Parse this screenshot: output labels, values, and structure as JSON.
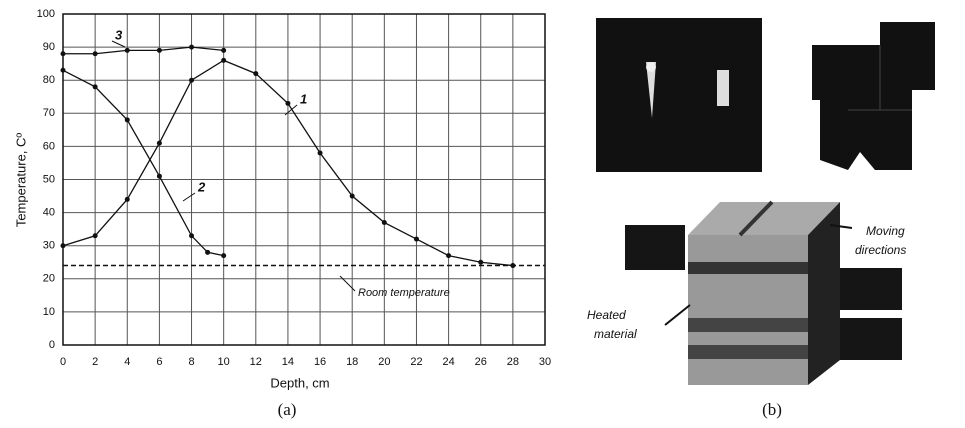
{
  "chart_data": {
    "type": "line",
    "ylabel": "Temperature, Cº",
    "xlabel": "Depth, cm",
    "series": [
      {
        "name": "1",
        "color": "#111111",
        "x": [
          0,
          2,
          4,
          6,
          8,
          10,
          12,
          14,
          16,
          18,
          20,
          22,
          24,
          26,
          28
        ],
        "values": [
          30,
          33,
          44,
          61,
          80,
          86,
          82,
          73,
          58,
          45,
          37,
          32,
          27,
          25,
          24
        ]
      },
      {
        "name": "2",
        "color": "#111111",
        "x": [
          0,
          2,
          4,
          6,
          8,
          9,
          10
        ],
        "values": [
          83,
          78,
          68,
          51,
          33,
          28,
          27
        ]
      },
      {
        "name": "3",
        "color": "#111111",
        "x": [
          0,
          2,
          4,
          6,
          8,
          10
        ],
        "values": [
          88,
          88,
          89,
          89,
          90,
          89
        ]
      }
    ],
    "reference_line": {
      "label": "Room temperature",
      "value": 24
    },
    "xlim": [
      0,
      30
    ],
    "xticks": [
      0,
      2,
      4,
      6,
      8,
      10,
      12,
      14,
      16,
      18,
      20,
      22,
      24,
      26,
      28,
      30
    ],
    "ylim": [
      0,
      100
    ],
    "yticks": [
      0,
      10,
      20,
      30,
      40,
      50,
      60,
      70,
      80,
      90,
      100
    ],
    "grid": true
  },
  "captions": [
    "(a)",
    "(b)"
  ],
  "panel_b": {
    "moving_label": [
      "Moving",
      "directions"
    ],
    "heated_label": [
      "Heated",
      "material"
    ]
  }
}
